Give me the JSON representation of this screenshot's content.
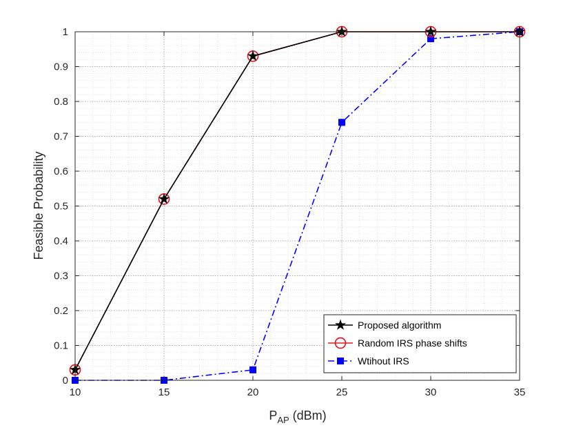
{
  "chart_data": {
    "type": "line",
    "title": "",
    "xlabel": "P",
    "xlabel_sub": "AP",
    "xlabel_suffix": "(dBm)",
    "ylabel": "Feasible Probability",
    "xlim": [
      10,
      35
    ],
    "ylim": [
      0,
      1
    ],
    "xticks": [
      10,
      15,
      20,
      25,
      30,
      35
    ],
    "yticks": [
      0,
      0.1,
      0.2,
      0.3,
      0.4,
      0.5,
      0.6,
      0.7,
      0.8,
      0.9,
      1
    ],
    "grid": true,
    "minor_grid": true,
    "legend_position": "bottom-right",
    "x": [
      10,
      15,
      20,
      25,
      30,
      35
    ],
    "series": [
      {
        "name": "Proposed algorithm",
        "values": [
          0.03,
          0.52,
          0.93,
          1,
          1,
          1
        ],
        "color": "#000000",
        "marker": "star",
        "line": "solid"
      },
      {
        "name": "Random IRS phase shifts",
        "values": [
          0.03,
          0.52,
          0.93,
          1,
          1,
          1
        ],
        "color": "#e41a1c",
        "marker": "circle",
        "line": "solid"
      },
      {
        "name": "Wtihout IRS",
        "values": [
          0,
          0,
          0.03,
          0.74,
          0.98,
          1
        ],
        "color": "#0000ff",
        "marker": "square",
        "line": "dashdot"
      }
    ]
  }
}
